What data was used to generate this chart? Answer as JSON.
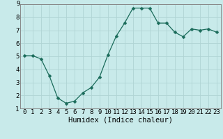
{
  "x": [
    0,
    1,
    2,
    3,
    4,
    5,
    6,
    7,
    8,
    9,
    10,
    11,
    12,
    13,
    14,
    15,
    16,
    17,
    18,
    19,
    20,
    21,
    22,
    23
  ],
  "y": [
    5.05,
    5.05,
    4.8,
    3.5,
    1.8,
    1.4,
    1.55,
    2.2,
    2.6,
    3.4,
    5.1,
    6.55,
    7.55,
    8.7,
    8.7,
    8.7,
    7.55,
    7.55,
    6.85,
    6.5,
    7.1,
    7.0,
    7.1,
    6.85
  ],
  "line_color": "#1a6b5a",
  "marker": "D",
  "marker_size": 2.5,
  "bg_color": "#c8eaea",
  "grid_color": "#b0d4d4",
  "xlabel": "Humidex (Indice chaleur)",
  "xlim": [
    -0.5,
    23.5
  ],
  "ylim": [
    1,
    9
  ],
  "yticks": [
    1,
    2,
    3,
    4,
    5,
    6,
    7,
    8,
    9
  ],
  "xtick_labels": [
    "0",
    "1",
    "2",
    "3",
    "4",
    "5",
    "6",
    "7",
    "8",
    "9",
    "10",
    "11",
    "12",
    "13",
    "14",
    "15",
    "16",
    "17",
    "18",
    "19",
    "20",
    "21",
    "22",
    "23"
  ],
  "font_size": 6.5,
  "xlabel_font_size": 7.5
}
